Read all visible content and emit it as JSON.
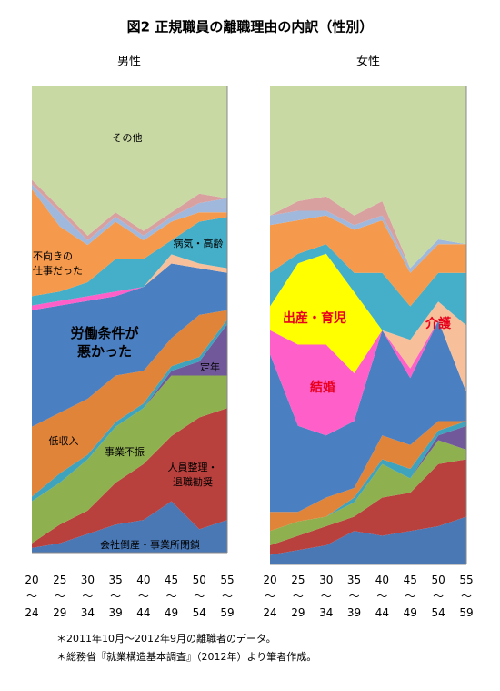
{
  "title": "図2 正規職員の離職理由の内訳（性別）",
  "notes": [
    "＊2011年10月～2012年9月の離職者のデータ。",
    "＊総務省『就業構造基本調査』（2012年）より筆者作成。"
  ],
  "chart_data": [
    {
      "type": "area",
      "title": "男性",
      "stacked": true,
      "categories": [
        "20〜24",
        "25〜29",
        "30〜34",
        "35〜39",
        "40〜44",
        "45〜49",
        "50〜54",
        "55〜59"
      ],
      "ylim": [
        0,
        100
      ],
      "series": [
        {
          "name": "会社倒産・事業所閉鎖",
          "color": "#4a78b5",
          "values": [
            1,
            2,
            4,
            6,
            7,
            11,
            5,
            7
          ]
        },
        {
          "name": "人員整理・退職勧奨",
          "color": "#b8403d",
          "values": [
            1,
            4,
            5,
            9,
            12,
            14,
            24,
            24
          ]
        },
        {
          "name": "事業不振",
          "color": "#8fb04f",
          "values": [
            9,
            9,
            11,
            12,
            12,
            13,
            9,
            7
          ]
        },
        {
          "name": "定年",
          "color": "#71589a",
          "values": [
            0,
            0,
            0,
            0,
            0,
            1,
            3,
            11
          ]
        },
        {
          "name": null,
          "color": "#3fa3bd",
          "values": [
            1,
            2,
            1,
            1,
            1,
            1,
            1,
            1
          ]
        },
        {
          "name": "低収入",
          "color": "#e0843a",
          "values": [
            15,
            13,
            12,
            10,
            7,
            6,
            9,
            2
          ]
        },
        {
          "name": "労働条件が悪かった",
          "color": "#4a7fc1",
          "values": [
            25,
            23,
            21,
            17,
            18,
            16,
            10,
            8
          ]
        },
        {
          "name": "結婚",
          "color": "#ff5fc8",
          "values": [
            1,
            1,
            1,
            1,
            0,
            0,
            0,
            0
          ]
        },
        {
          "name": "出産・育児",
          "color": "#ffff00",
          "values": [
            0,
            0,
            0,
            0,
            0,
            0,
            0,
            0
          ]
        },
        {
          "name": "介護",
          "color": "#f8c09a",
          "values": [
            0,
            0,
            0,
            0,
            0,
            2,
            1,
            1
          ]
        },
        {
          "name": "病気・高齢",
          "color": "#45aec8",
          "values": [
            2,
            2,
            3,
            7,
            6,
            3,
            9,
            11
          ]
        },
        {
          "name": "不向きの仕事だった",
          "color": "#f59a4c",
          "values": [
            23,
            14,
            8,
            8,
            4,
            4,
            2,
            1
          ]
        },
        {
          "name": null,
          "color": "#9fb8dc",
          "values": [
            1,
            3,
            1,
            1,
            1,
            1,
            2,
            3
          ]
        },
        {
          "name": null,
          "color": "#d9a0a0",
          "values": [
            1,
            1,
            1,
            1,
            1,
            1,
            2,
            0
          ]
        },
        {
          "name": "その他",
          "color": "#c9d9a4",
          "values": [
            20,
            26,
            32,
            27,
            31,
            27,
            23,
            24
          ]
        }
      ]
    },
    {
      "type": "area",
      "title": "女性",
      "stacked": true,
      "categories": [
        "20〜24",
        "25〜29",
        "30〜34",
        "35〜39",
        "40〜44",
        "45〜49",
        "50〜54",
        "55〜59"
      ],
      "ylim": [
        0,
        100
      ],
      "series": [
        {
          "name": "会社倒産・事業所閉鎖",
          "color": "#4a78b5",
          "values": [
            2,
            3,
            4,
            7,
            6,
            7,
            8,
            10
          ]
        },
        {
          "name": "人員整理・退職勧奨",
          "color": "#b8403d",
          "values": [
            2,
            3,
            4,
            3,
            8,
            8,
            13,
            12
          ]
        },
        {
          "name": "事業不振",
          "color": "#8fb04f",
          "values": [
            3,
            3,
            2,
            3,
            7,
            3,
            5,
            2
          ]
        },
        {
          "name": "定年",
          "color": "#71589a",
          "values": [
            0,
            0,
            0,
            0,
            0,
            0,
            1,
            5
          ]
        },
        {
          "name": null,
          "color": "#3fa3bd",
          "values": [
            0,
            0,
            0,
            1,
            1,
            2,
            1,
            1
          ]
        },
        {
          "name": "低収入",
          "color": "#e0843a",
          "values": [
            4,
            2,
            4,
            2,
            5,
            5,
            2,
            0
          ]
        },
        {
          "name": "労働条件が悪かった",
          "color": "#4a7fc1",
          "values": [
            33,
            18,
            13,
            14,
            22,
            14,
            21,
            6
          ]
        },
        {
          "name": "結婚",
          "color": "#ff5fc8",
          "values": [
            5,
            17,
            19,
            10,
            0,
            2,
            0,
            0
          ]
        },
        {
          "name": "出産・育児",
          "color": "#ffff00",
          "values": [
            5,
            17,
            19,
            17,
            0,
            0,
            0,
            0
          ]
        },
        {
          "name": "介護",
          "color": "#f8c09a",
          "values": [
            0,
            0,
            0,
            0,
            0,
            6,
            4,
            14
          ]
        },
        {
          "name": "病気・高齢",
          "color": "#45aec8",
          "values": [
            7,
            2,
            2,
            4,
            12,
            7,
            6,
            11
          ]
        },
        {
          "name": "不向きの仕事だった",
          "color": "#f59a4c",
          "values": [
            10,
            7,
            6,
            9,
            11,
            7,
            6,
            6
          ]
        },
        {
          "name": null,
          "color": "#9fb8dc",
          "values": [
            2,
            2,
            1,
            1,
            1,
            1,
            1,
            0
          ]
        },
        {
          "name": null,
          "color": "#d9a0a0",
          "values": [
            0,
            2,
            3,
            2,
            3,
            0,
            0,
            0
          ]
        },
        {
          "name": "その他",
          "color": "#c9d9a4",
          "values": [
            27,
            24,
            23,
            27,
            24,
            38,
            32,
            33
          ]
        }
      ]
    }
  ]
}
